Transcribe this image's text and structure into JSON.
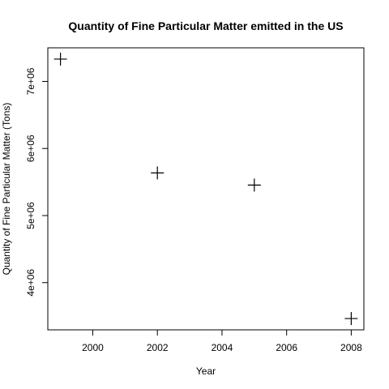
{
  "chart_data": {
    "type": "scatter",
    "title": "Quantity of Fine Particular Matter emitted in the US",
    "xlabel": "Year",
    "ylabel": "Quantity of Fine Particular Matter (Tons)",
    "x": [
      1999,
      2002,
      2005,
      2008
    ],
    "y": [
      7332967,
      5635780,
      5454703,
      3464206
    ],
    "xlim": [
      1999,
      2008
    ],
    "ylim": [
      3464206,
      7332967
    ],
    "x_ticks": [
      2000,
      2002,
      2004,
      2006,
      2008
    ],
    "x_tick_labels": [
      "2000",
      "2002",
      "2004",
      "2006",
      "2008"
    ],
    "y_ticks": [
      4000000,
      5000000,
      6000000,
      7000000
    ],
    "y_tick_labels": [
      "4e+06",
      "5e+06",
      "6e+06",
      "7e+06"
    ],
    "marker": "plus",
    "grid": false,
    "legend": "none",
    "colors": {
      "points": "#000000",
      "axes": "#000000",
      "background": "#ffffff"
    }
  }
}
